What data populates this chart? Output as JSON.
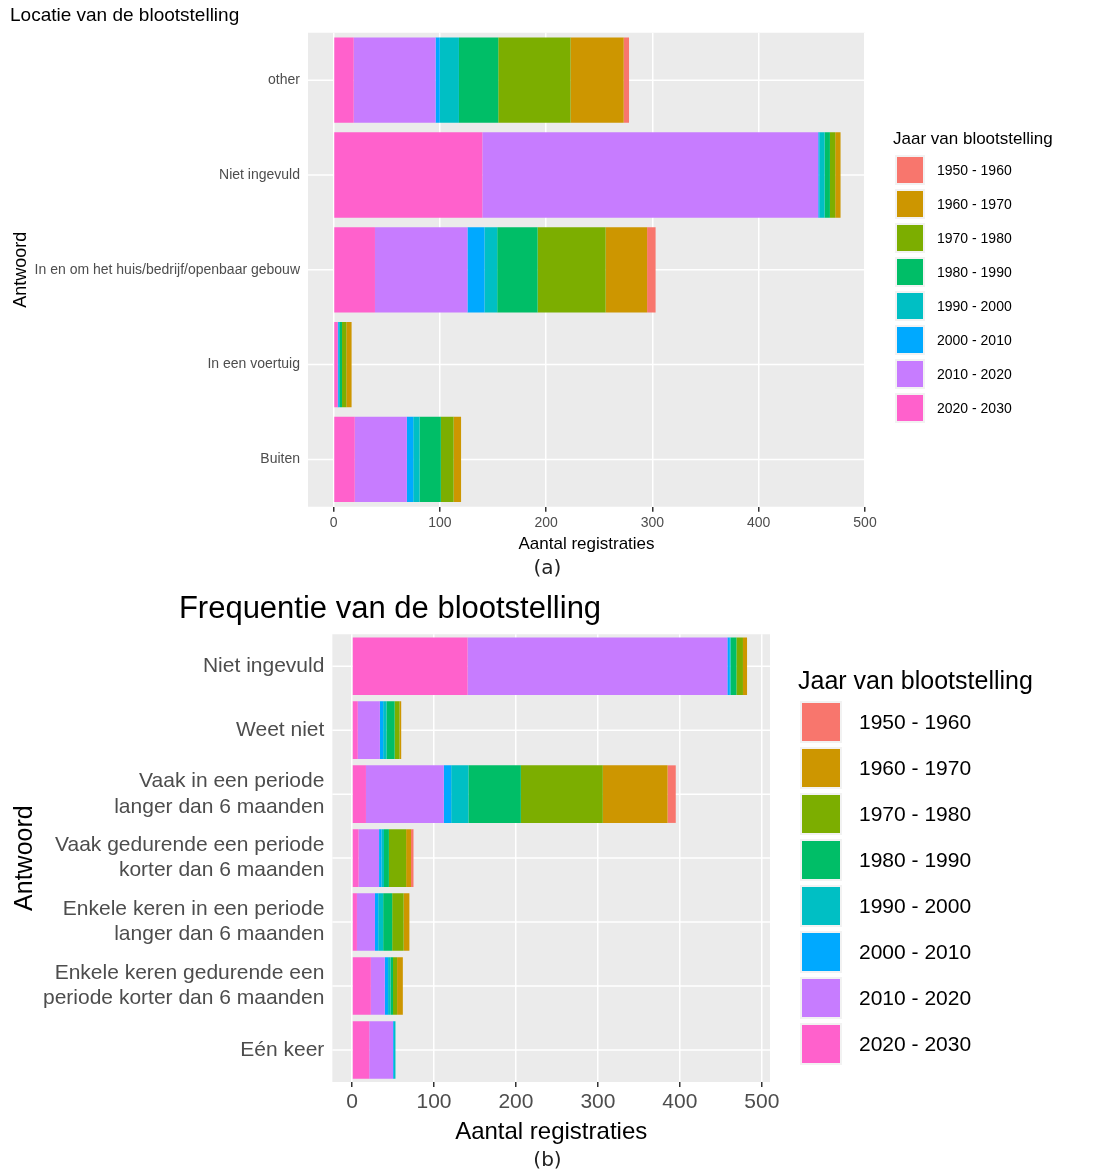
{
  "chart_data": [
    {
      "type": "bar",
      "orientation": "horizontal",
      "stacked": true,
      "title": "Locatie van de blootstelling",
      "xlabel": "Aantal registraties",
      "ylabel": "Antwoord",
      "legend_title": "Jaar van blootstelling",
      "legend": "right",
      "grid": true,
      "categories": [
        "other",
        "Niet ingevuld",
        "In en om het huis/bedrijf/openbaar gebouw",
        "In een voertuig",
        "Buiten"
      ],
      "xlim": [
        -24,
        500
      ],
      "xticks": [
        0,
        100,
        200,
        300,
        400,
        500
      ],
      "annotations": [
        "(a)"
      ],
      "series": [
        {
          "name": "2020 - 2030",
          "color": "#ff61cc",
          "values": [
            19,
            140,
            39,
            4,
            20
          ]
        },
        {
          "name": "2010 - 2020",
          "color": "#c77cff",
          "values": [
            77,
            316,
            87,
            0,
            49
          ]
        },
        {
          "name": "2000 - 2010",
          "color": "#00a9ff",
          "values": [
            4,
            1,
            16,
            1,
            6
          ]
        },
        {
          "name": "1990 - 2000",
          "color": "#00bfc4",
          "values": [
            18,
            5,
            12,
            1,
            6
          ]
        },
        {
          "name": "1980 - 1990",
          "color": "#00be67",
          "values": [
            37,
            5,
            38,
            2,
            20
          ]
        },
        {
          "name": "1970 - 1980",
          "color": "#7cae00",
          "values": [
            68,
            5,
            64,
            4,
            12
          ]
        },
        {
          "name": "1960 - 1970",
          "color": "#cd9600",
          "values": [
            50,
            5,
            39,
            5,
            7
          ]
        },
        {
          "name": "1950 - 1960",
          "color": "#f8766d",
          "values": [
            5,
            0,
            8,
            0,
            0
          ]
        }
      ]
    },
    {
      "type": "bar",
      "orientation": "horizontal",
      "stacked": true,
      "title": "Frequentie van de blootstelling",
      "xlabel": "Aantal registraties",
      "ylabel": "Antwoord",
      "legend_title": "Jaar van blootstelling",
      "legend": "right",
      "grid": true,
      "categories": [
        "Niet ingevuld",
        "Weet niet",
        "Vaak in een periode\nlanger dan 6 maanden",
        "Vaak gedurende een periode\nkorter dan 6 maanden",
        "Enkele keren in een periode\nlanger dan 6 maanden",
        "Enkele keren gedurende een\nperiode korter dan 6 maanden",
        "Eén keer"
      ],
      "xlim": [
        -24,
        510
      ],
      "xticks": [
        0,
        100,
        200,
        300,
        400,
        500
      ],
      "annotations": [
        "(b)"
      ],
      "series": [
        {
          "name": "2020 - 2030",
          "color": "#ff61cc",
          "values": [
            141,
            7,
            17,
            8,
            6,
            23,
            21
          ]
        },
        {
          "name": "2010 - 2020",
          "color": "#c77cff",
          "values": [
            317,
            27,
            95,
            25,
            22,
            17,
            29
          ]
        },
        {
          "name": "2000 - 2010",
          "color": "#00a9ff",
          "values": [
            3,
            4,
            9,
            3,
            4,
            4,
            1
          ]
        },
        {
          "name": "1990 - 2000",
          "color": "#00bfc4",
          "values": [
            1,
            4,
            21,
            3,
            6,
            3,
            2
          ]
        },
        {
          "name": "1980 - 1990",
          "color": "#00be67",
          "values": [
            7,
            10,
            64,
            6,
            11,
            3,
            0
          ]
        },
        {
          "name": "1970 - 1980",
          "color": "#7cae00",
          "values": [
            8,
            6,
            100,
            21,
            14,
            5,
            0
          ]
        },
        {
          "name": "1960 - 1970",
          "color": "#cd9600",
          "values": [
            5,
            2,
            79,
            6,
            7,
            7,
            0
          ]
        },
        {
          "name": "1950 - 1960",
          "color": "#f8766d",
          "values": [
            0,
            0,
            10,
            3,
            0,
            0,
            0
          ]
        }
      ]
    }
  ]
}
